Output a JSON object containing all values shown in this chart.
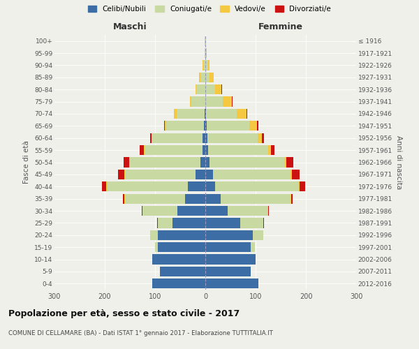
{
  "age_groups": [
    "0-4",
    "5-9",
    "10-14",
    "15-19",
    "20-24",
    "25-29",
    "30-34",
    "35-39",
    "40-44",
    "45-49",
    "50-54",
    "55-59",
    "60-64",
    "65-69",
    "70-74",
    "75-79",
    "80-84",
    "85-89",
    "90-94",
    "95-99",
    "100+"
  ],
  "birth_years": [
    "2012-2016",
    "2007-2011",
    "2002-2006",
    "1997-2001",
    "1992-1996",
    "1987-1991",
    "1982-1986",
    "1977-1981",
    "1972-1976",
    "1967-1971",
    "1962-1966",
    "1957-1961",
    "1952-1956",
    "1947-1951",
    "1942-1946",
    "1937-1941",
    "1932-1936",
    "1927-1931",
    "1922-1926",
    "1917-1921",
    "≤ 1916"
  ],
  "male": {
    "celibi": [
      105,
      90,
      105,
      95,
      95,
      65,
      55,
      40,
      35,
      20,
      10,
      6,
      5,
      3,
      2,
      0,
      0,
      0,
      0,
      0,
      0
    ],
    "coniugati": [
      0,
      0,
      0,
      5,
      15,
      30,
      70,
      120,
      160,
      140,
      140,
      115,
      100,
      75,
      55,
      28,
      18,
      10,
      4,
      2,
      1
    ],
    "vedovi": [
      0,
      0,
      0,
      0,
      0,
      0,
      0,
      1,
      2,
      1,
      1,
      1,
      2,
      3,
      5,
      3,
      2,
      2,
      1,
      0,
      0
    ],
    "divorziati": [
      0,
      0,
      0,
      0,
      0,
      1,
      2,
      3,
      8,
      12,
      12,
      8,
      3,
      1,
      1,
      0,
      0,
      0,
      0,
      0,
      0
    ]
  },
  "female": {
    "nubili": [
      105,
      90,
      100,
      90,
      95,
      70,
      45,
      30,
      20,
      15,
      8,
      5,
      4,
      3,
      2,
      0,
      0,
      0,
      0,
      0,
      0
    ],
    "coniugate": [
      0,
      0,
      0,
      8,
      20,
      45,
      80,
      140,
      165,
      155,
      150,
      120,
      100,
      85,
      60,
      35,
      20,
      8,
      5,
      2,
      1
    ],
    "vedove": [
      0,
      0,
      0,
      0,
      0,
      0,
      0,
      1,
      2,
      2,
      3,
      5,
      8,
      15,
      20,
      18,
      12,
      8,
      3,
      1,
      0
    ],
    "divorziate": [
      0,
      0,
      0,
      0,
      0,
      1,
      2,
      3,
      12,
      15,
      14,
      8,
      4,
      2,
      2,
      1,
      1,
      0,
      0,
      0,
      0
    ]
  },
  "colors": {
    "celibi": "#3c6ea5",
    "coniugati": "#c8d9a2",
    "vedovi": "#f5c842",
    "divorziati": "#cc1111"
  },
  "title": "Popolazione per età, sesso e stato civile - 2017",
  "subtitle": "COMUNE DI CELLAMARE (BA) - Dati ISTAT 1° gennaio 2017 - Elaborazione TUTTITALIA.IT",
  "xlabel_left": "Maschi",
  "xlabel_right": "Femmine",
  "ylabel_left": "Fasce di età",
  "ylabel_right": "Anni di nascita",
  "xlim": 300,
  "background_color": "#f0f0eb",
  "legend_labels": [
    "Celibi/Nubili",
    "Coniugati/e",
    "Vedovi/e",
    "Divorziati/e"
  ]
}
